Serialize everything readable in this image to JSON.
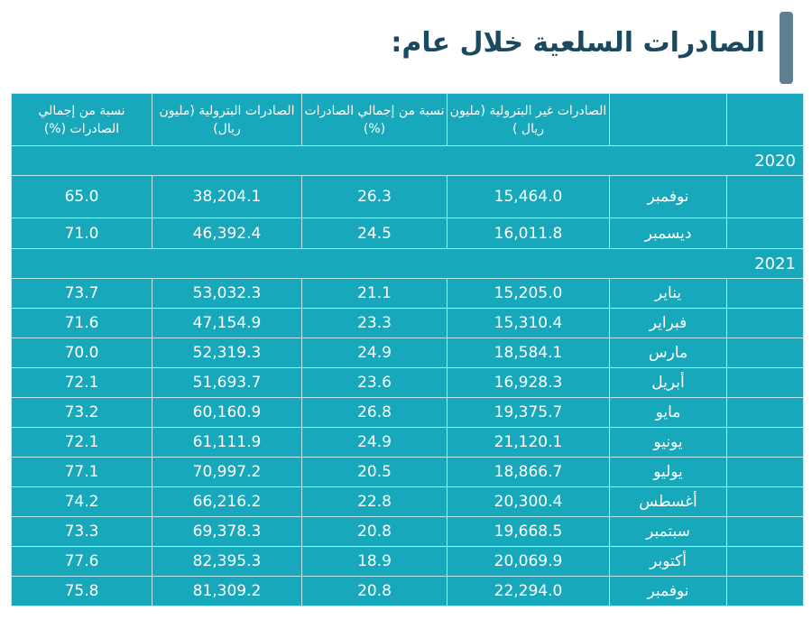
{
  "title": "الصادرات السلعية خلال عام:",
  "headers": {
    "col_non_oil": "الصادرات غير البترولية (مليون ريال )",
    "col_non_oil_pct": "نسبة من إجمالي الصادرات (%)",
    "col_oil": "الصادرات البترولية (مليون ريال)",
    "col_oil_pct": "نسبة من إجمالي الصادرات (%)"
  },
  "groups": [
    {
      "year": "2020",
      "rows": [
        {
          "month": "نوفمبر",
          "non_oil": "15,464.0",
          "non_oil_pct": "26.3",
          "oil": "38,204.1",
          "oil_pct": "65.0"
        },
        {
          "month": "ديسمبر",
          "non_oil": "16,011.8",
          "non_oil_pct": "24.5",
          "oil": "46,392.4",
          "oil_pct": "71.0"
        }
      ]
    },
    {
      "year": "2021",
      "rows": [
        {
          "month": "يناير",
          "non_oil": "15,205.0",
          "non_oil_pct": "21.1",
          "oil": "53,032.3",
          "oil_pct": "73.7"
        },
        {
          "month": "فبراير",
          "non_oil": "15,310.4",
          "non_oil_pct": "23.3",
          "oil": "47,154.9",
          "oil_pct": "71.6"
        },
        {
          "month": "مارس",
          "non_oil": "18,584.1",
          "non_oil_pct": "24.9",
          "oil": "52,319.3",
          "oil_pct": "70.0"
        },
        {
          "month": "أبريل",
          "non_oil": "16,928.3",
          "non_oil_pct": "23.6",
          "oil": "51,693.7",
          "oil_pct": "72.1"
        },
        {
          "month": "مايو",
          "non_oil": "19,375.7",
          "non_oil_pct": "26.8",
          "oil": "60,160.9",
          "oil_pct": "73.2"
        },
        {
          "month": "يونيو",
          "non_oil": "21,120.1",
          "non_oil_pct": "24.9",
          "oil": "61,111.9",
          "oil_pct": "72.1"
        },
        {
          "month": "يوليو",
          "non_oil": "18,866.7",
          "non_oil_pct": "20.5",
          "oil": "70,997.2",
          "oil_pct": "77.1"
        },
        {
          "month": "أغسطس",
          "non_oil": "20,300.4",
          "non_oil_pct": "22.8",
          "oil": "66,216.2",
          "oil_pct": "74.2"
        },
        {
          "month": "سبتمبر",
          "non_oil": "19,668.5",
          "non_oil_pct": "20.8",
          "oil": "69,378.3",
          "oil_pct": "73.3"
        },
        {
          "month": "أكتوبر",
          "non_oil": "20,069.9",
          "non_oil_pct": "18.9",
          "oil": "82,395.3",
          "oil_pct": "77.6"
        },
        {
          "month": "نوفمبر",
          "non_oil": "22,294.0",
          "non_oil_pct": "20.8",
          "oil": "81,309.2",
          "oil_pct": "75.8"
        }
      ]
    }
  ]
}
